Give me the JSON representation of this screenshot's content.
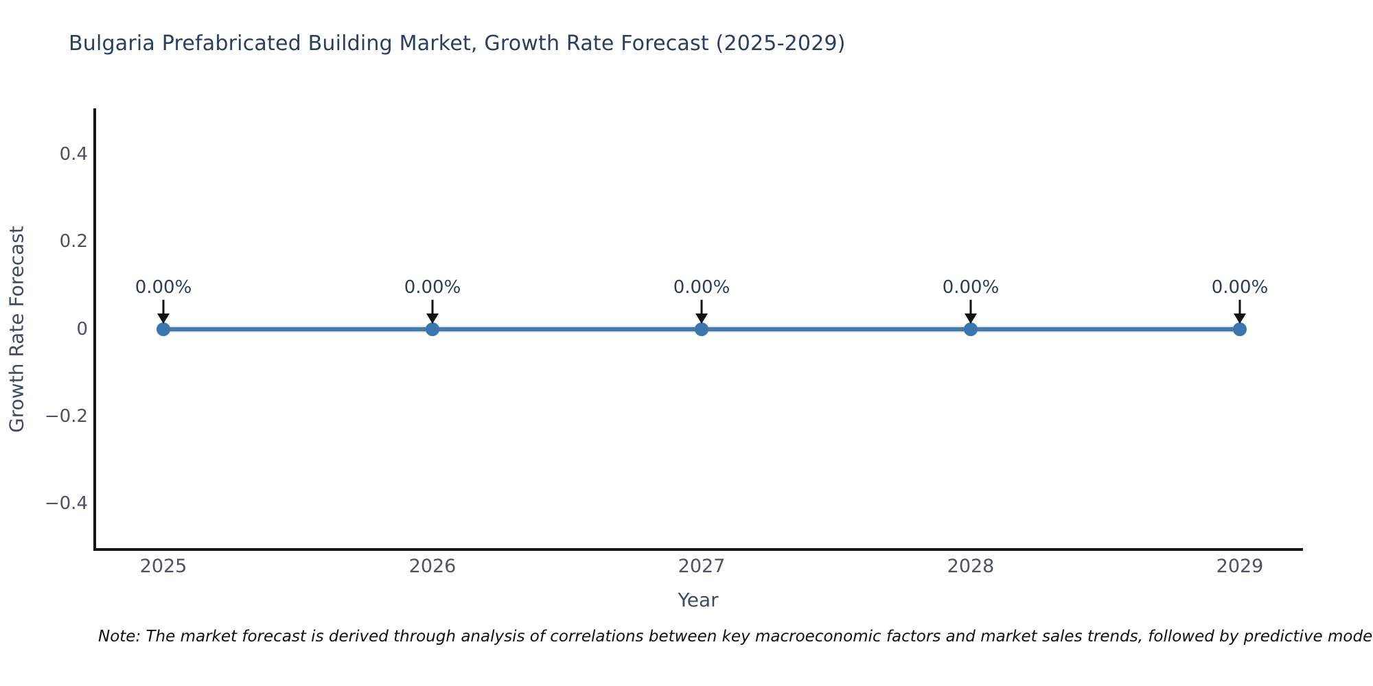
{
  "title": "Bulgaria Prefabricated Building Market, Growth Rate Forecast (2025-2029)",
  "note": "Note: The market forecast is derived through analysis of correlations between key macroeconomic factors and market sales trends, followed by predictive modeling to project future sa",
  "chart_data": {
    "type": "line",
    "title": "Bulgaria Prefabricated Building Market, Growth Rate Forecast (2025-2029)",
    "xlabel": "Year",
    "ylabel": "Growth Rate Forecast",
    "x": [
      2025,
      2026,
      2027,
      2028,
      2029
    ],
    "series": [
      {
        "name": "Growth Rate Forecast",
        "values": [
          0,
          0,
          0,
          0,
          0
        ]
      }
    ],
    "point_labels": [
      "0.00%",
      "0.00%",
      "0.00%",
      "0.00%",
      "0.00%"
    ],
    "ylim": [
      -0.5,
      0.5
    ],
    "ytick_labels": [
      "0.4",
      "0.2",
      "0",
      "−0.2",
      "−0.4"
    ],
    "xtick_labels": [
      "2025",
      "2026",
      "2027",
      "2028",
      "2029"
    ],
    "grid": false,
    "legend": "none",
    "colors": {
      "line": "#4a78a5",
      "line_halo": "#d4e8f6",
      "marker": "#3a76ae",
      "arrow": "#131313",
      "spine": "#151515",
      "title_text": "#2a3f5f",
      "tick_text": "#4a5263",
      "axis_label_text": "#3d4c63",
      "point_label_text": "#2c3e56",
      "background": "#ffffff"
    }
  }
}
